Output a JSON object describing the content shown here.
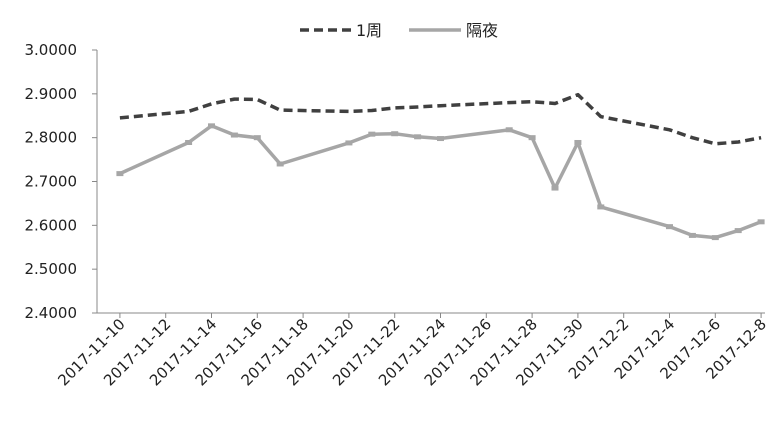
{
  "chart_data": {
    "type": "line",
    "title": "",
    "xlabel": "",
    "ylabel": "",
    "ylim": [
      2.4,
      3.0
    ],
    "y_ticks": [
      "3.0000",
      "2.9000",
      "2.8000",
      "2.7000",
      "2.6000",
      "2.5000",
      "2.4000"
    ],
    "x_tick_labels": [
      "2017-11-10",
      "2017-11-12",
      "2017-11-14",
      "2017-11-16",
      "2017-11-18",
      "2017-11-20",
      "2017-11-22",
      "2017-11-24",
      "2017-11-26",
      "2017-11-28",
      "2017-11-30",
      "2017-12-2",
      "2017-12-4",
      "2017-12-6",
      "2017-12-8"
    ],
    "x": [
      "2017-11-10",
      "2017-11-13",
      "2017-11-14",
      "2017-11-15",
      "2017-11-16",
      "2017-11-17",
      "2017-11-20",
      "2017-11-21",
      "2017-11-22",
      "2017-11-23",
      "2017-11-24",
      "2017-11-27",
      "2017-11-28",
      "2017-11-29",
      "2017-11-30",
      "2017-12-1",
      "2017-12-4",
      "2017-12-5",
      "2017-12-6",
      "2017-12-7",
      "2017-12-8"
    ],
    "legend_position": "top-center",
    "grid": false,
    "series": [
      {
        "name": "1周",
        "style": "dashed",
        "color": "#404040",
        "values": [
          2.845,
          2.86,
          2.877,
          2.888,
          2.887,
          2.863,
          2.86,
          2.862,
          2.868,
          2.87,
          2.873,
          2.88,
          2.882,
          2.878,
          2.898,
          2.848,
          2.818,
          2.8,
          2.786,
          2.79,
          2.8
        ]
      },
      {
        "name": "隔夜",
        "style": "solid",
        "color": "#a6a6a6",
        "values": [
          2.718,
          2.789,
          2.827,
          2.806,
          2.8,
          2.74,
          2.788,
          2.808,
          2.809,
          2.802,
          2.798,
          2.818,
          2.8,
          2.685,
          2.789,
          2.642,
          2.597,
          2.577,
          2.572,
          2.588,
          2.608
        ]
      }
    ]
  }
}
